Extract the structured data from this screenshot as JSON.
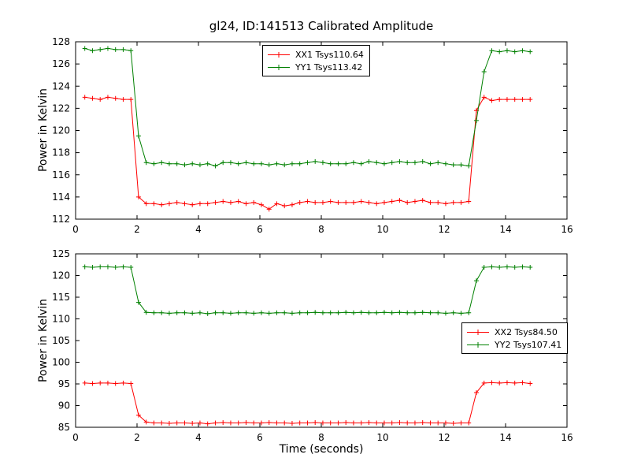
{
  "title": "gl24, ID:141513 Calibrated Amplitude",
  "xlabel": "Time (seconds)",
  "ylabel": "Power in Kelvin",
  "chart_data": [
    {
      "type": "line",
      "ylabel": "Power in Kelvin",
      "xlim": [
        0,
        16
      ],
      "ylim": [
        112,
        128
      ],
      "xticks": [
        0,
        2,
        4,
        6,
        8,
        10,
        12,
        14,
        16
      ],
      "yticks": [
        112,
        114,
        116,
        118,
        120,
        122,
        124,
        126,
        128
      ],
      "grid": false,
      "legend_position": "top-center",
      "x": [
        0.3,
        0.55,
        0.8,
        1.05,
        1.3,
        1.55,
        1.8,
        2.05,
        2.3,
        2.55,
        2.8,
        3.05,
        3.3,
        3.55,
        3.8,
        4.05,
        4.3,
        4.55,
        4.8,
        5.05,
        5.3,
        5.55,
        5.8,
        6.05,
        6.3,
        6.55,
        6.8,
        7.05,
        7.3,
        7.55,
        7.8,
        8.05,
        8.3,
        8.55,
        8.8,
        9.05,
        9.3,
        9.55,
        9.8,
        10.05,
        10.3,
        10.55,
        10.8,
        11.05,
        11.3,
        11.55,
        11.8,
        12.05,
        12.3,
        12.55,
        12.8,
        13.05,
        13.3,
        13.55,
        13.8,
        14.05,
        14.3,
        14.55,
        14.8
      ],
      "series": [
        {
          "name": "XX1 Tsys110.64",
          "color": "#ff0000",
          "marker": "+",
          "values": [
            123.0,
            122.9,
            122.8,
            123.0,
            122.9,
            122.8,
            122.8,
            114.0,
            113.4,
            113.4,
            113.3,
            113.4,
            113.5,
            113.4,
            113.3,
            113.4,
            113.4,
            113.5,
            113.6,
            113.5,
            113.6,
            113.4,
            113.5,
            113.3,
            112.9,
            113.4,
            113.2,
            113.3,
            113.5,
            113.6,
            113.5,
            113.5,
            113.6,
            113.5,
            113.5,
            113.5,
            113.6,
            113.5,
            113.4,
            113.5,
            113.6,
            113.7,
            113.5,
            113.6,
            113.7,
            113.5,
            113.5,
            113.4,
            113.5,
            113.5,
            113.6,
            121.8,
            123.0,
            122.7,
            122.8,
            122.8,
            122.8,
            122.8,
            122.8
          ]
        },
        {
          "name": "YY1 Tsys113.42",
          "color": "#008000",
          "marker": "+",
          "values": [
            127.4,
            127.2,
            127.3,
            127.4,
            127.3,
            127.3,
            127.2,
            119.5,
            117.1,
            117.0,
            117.1,
            117.0,
            117.0,
            116.9,
            117.0,
            116.9,
            117.0,
            116.8,
            117.1,
            117.1,
            117.0,
            117.1,
            117.0,
            117.0,
            116.9,
            117.0,
            116.9,
            117.0,
            117.0,
            117.1,
            117.2,
            117.1,
            117.0,
            117.0,
            117.0,
            117.1,
            117.0,
            117.2,
            117.1,
            117.0,
            117.1,
            117.2,
            117.1,
            117.1,
            117.2,
            117.0,
            117.1,
            117.0,
            116.9,
            116.9,
            116.8,
            120.9,
            125.3,
            127.2,
            127.1,
            127.2,
            127.1,
            127.2,
            127.1
          ]
        }
      ]
    },
    {
      "type": "line",
      "ylabel": "Power in Kelvin",
      "xlabel": "Time (seconds)",
      "xlim": [
        0,
        16
      ],
      "ylim": [
        85,
        125
      ],
      "xticks": [
        0,
        2,
        4,
        6,
        8,
        10,
        12,
        14,
        16
      ],
      "yticks": [
        85,
        90,
        95,
        100,
        105,
        110,
        115,
        120,
        125
      ],
      "grid": false,
      "legend_position": "right-center",
      "x": [
        0.3,
        0.55,
        0.8,
        1.05,
        1.3,
        1.55,
        1.8,
        2.05,
        2.3,
        2.55,
        2.8,
        3.05,
        3.3,
        3.55,
        3.8,
        4.05,
        4.3,
        4.55,
        4.8,
        5.05,
        5.3,
        5.55,
        5.8,
        6.05,
        6.3,
        6.55,
        6.8,
        7.05,
        7.3,
        7.55,
        7.8,
        8.05,
        8.3,
        8.55,
        8.8,
        9.05,
        9.3,
        9.55,
        9.8,
        10.05,
        10.3,
        10.55,
        10.8,
        11.05,
        11.3,
        11.55,
        11.8,
        12.05,
        12.3,
        12.55,
        12.8,
        13.05,
        13.3,
        13.55,
        13.8,
        14.05,
        14.3,
        14.55,
        14.8
      ],
      "series": [
        {
          "name": "XX2 Tsys84.50",
          "color": "#ff0000",
          "marker": "+",
          "values": [
            95.2,
            95.1,
            95.2,
            95.2,
            95.1,
            95.2,
            95.1,
            87.8,
            86.2,
            86.0,
            86.0,
            85.9,
            86.0,
            86.0,
            85.9,
            86.0,
            85.8,
            86.0,
            86.1,
            86.0,
            86.0,
            86.1,
            86.0,
            86.0,
            86.1,
            86.0,
            86.0,
            85.9,
            86.0,
            86.0,
            86.1,
            86.0,
            86.0,
            86.0,
            86.1,
            86.0,
            86.0,
            86.1,
            86.0,
            86.0,
            86.0,
            86.1,
            86.0,
            86.0,
            86.1,
            86.0,
            86.0,
            86.0,
            85.9,
            86.0,
            86.0,
            93.0,
            95.2,
            95.3,
            95.2,
            95.3,
            95.2,
            95.3,
            95.1
          ]
        },
        {
          "name": "YY2 Tsys107.41",
          "color": "#008000",
          "marker": "+",
          "values": [
            122.0,
            121.9,
            122.0,
            122.0,
            121.9,
            122.0,
            121.9,
            113.8,
            111.5,
            111.4,
            111.4,
            111.3,
            111.4,
            111.4,
            111.3,
            111.4,
            111.2,
            111.4,
            111.4,
            111.3,
            111.4,
            111.4,
            111.3,
            111.4,
            111.3,
            111.4,
            111.4,
            111.3,
            111.4,
            111.4,
            111.5,
            111.4,
            111.4,
            111.4,
            111.5,
            111.4,
            111.5,
            111.4,
            111.4,
            111.5,
            111.4,
            111.5,
            111.4,
            111.4,
            111.5,
            111.4,
            111.4,
            111.3,
            111.4,
            111.3,
            111.4,
            118.8,
            121.9,
            122.0,
            121.9,
            122.0,
            121.9,
            122.0,
            121.9
          ]
        }
      ]
    }
  ]
}
